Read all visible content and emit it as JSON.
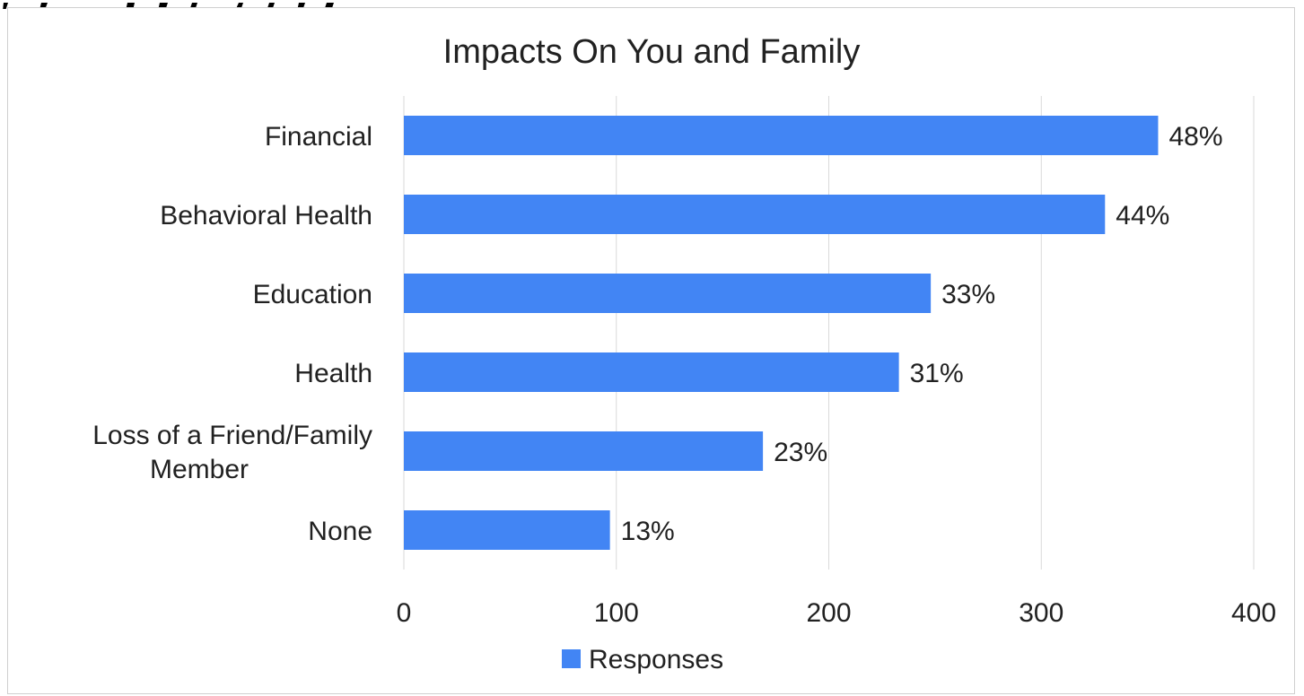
{
  "chart_data": {
    "type": "bar",
    "orientation": "horizontal",
    "title": "Impacts On You and Family",
    "categories": [
      "Financial",
      "Behavioral Health",
      "Education",
      "Health",
      "Loss of a Friend/Family Member",
      "None"
    ],
    "series": [
      {
        "name": "Responses",
        "values": [
          355,
          330,
          248,
          233,
          169,
          97
        ],
        "data_labels": [
          "48%",
          "44%",
          "33%",
          "31%",
          "23%",
          "13%"
        ]
      }
    ],
    "xlim": [
      0,
      400
    ],
    "xticks": [
      "0",
      "100",
      "200",
      "300",
      "400"
    ],
    "xlabel": "",
    "ylabel": "",
    "grid": "vertical",
    "legend": "bottom",
    "bar_color": "#4285f4"
  }
}
